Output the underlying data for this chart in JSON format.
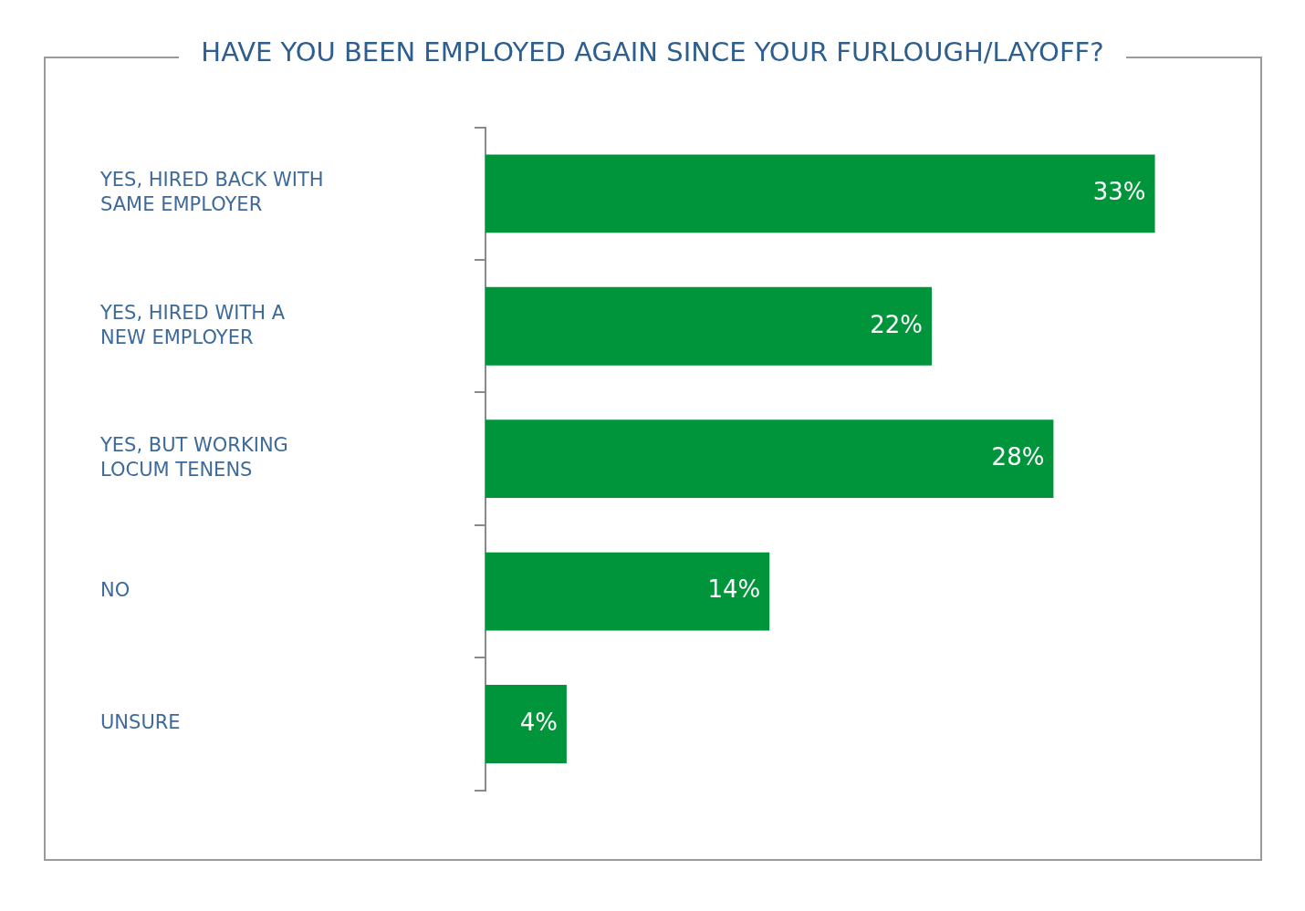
{
  "chart_data": {
    "type": "bar",
    "orientation": "horizontal",
    "title": "HAVE YOU BEEN EMPLOYED AGAIN SINCE YOUR FURLOUGH/LAYOFF?",
    "categories": [
      "YES, HIRED BACK WITH SAME EMPLOYER",
      "YES, HIRED WITH A NEW EMPLOYER",
      "YES, BUT WORKING LOCUM TENENS",
      "NO",
      "UNSURE"
    ],
    "values": [
      33,
      22,
      28,
      14,
      4
    ],
    "value_labels": [
      "33%",
      "22%",
      "28%",
      "14%",
      "4%"
    ],
    "color": "#00953a",
    "legend": false
  }
}
